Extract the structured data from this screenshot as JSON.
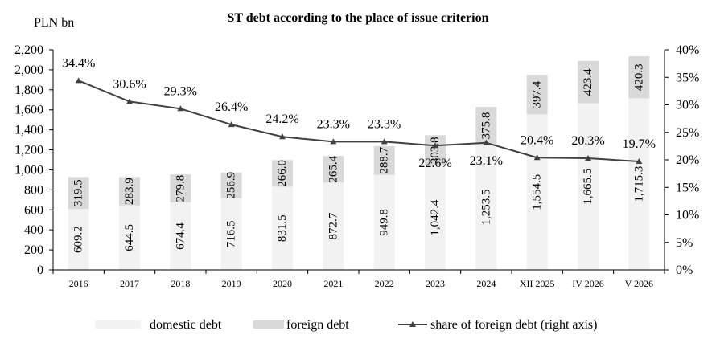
{
  "chart_data": {
    "type": "bar",
    "title": "ST debt according to the place of issue criterion",
    "unit_label": "PLN bn",
    "categories": [
      "2016",
      "2017",
      "2018",
      "2019",
      "2020",
      "2021",
      "2022",
      "2023",
      "2024",
      "XII 2025",
      "IV 2026",
      "V 2026"
    ],
    "series": [
      {
        "name": "domestic debt",
        "type": "bar",
        "stack": "debt",
        "axis": "left",
        "color": "#f2f2f2",
        "values": [
          609.2,
          644.5,
          674.4,
          716.5,
          831.5,
          872.7,
          949.8,
          1042.4,
          1253.5,
          1554.5,
          1665.5,
          1715.3
        ],
        "labels": [
          "609.2",
          "644.5",
          "674.4",
          "716.5",
          "831.5",
          "872.7",
          "949.8",
          "1,042.4",
          "1,253.5",
          "1,554.5",
          "1,665.5",
          "1,715.3"
        ]
      },
      {
        "name": "foreign debt",
        "type": "bar",
        "stack": "debt",
        "axis": "left",
        "color": "#d9d9d9",
        "values": [
          319.5,
          283.9,
          279.8,
          256.9,
          266.0,
          265.4,
          288.7,
          303.8,
          375.8,
          397.4,
          423.4,
          420.3
        ],
        "labels": [
          "319.5",
          "283.9",
          "279.8",
          "256.9",
          "266.0",
          "265.4",
          "288.7",
          "303.8",
          "375.8",
          "397.4",
          "423.4",
          "420.3"
        ]
      },
      {
        "name": "share of foreign debt (right axis)",
        "type": "line",
        "axis": "right",
        "color": "#404040",
        "values": [
          34.4,
          30.6,
          29.3,
          26.4,
          24.2,
          23.3,
          23.3,
          22.6,
          23.1,
          20.4,
          20.3,
          19.7
        ],
        "labels": [
          "34.4%",
          "30.6%",
          "29.3%",
          "26.4%",
          "24.2%",
          "23.3%",
          "23.3%",
          "22.6%",
          "23.1%",
          "20.4%",
          "20.3%",
          "19.7%"
        ]
      }
    ],
    "y_left": {
      "min": 0,
      "max": 2200,
      "ticks": [
        0,
        200,
        400,
        600,
        800,
        1000,
        1200,
        1400,
        1600,
        1800,
        2000,
        2200
      ],
      "tick_labels": [
        "0",
        "200",
        "400",
        "600",
        "800",
        "1,000",
        "1,200",
        "1,400",
        "1,600",
        "1,800",
        "2,000",
        "2,200"
      ]
    },
    "y_right": {
      "min": 0,
      "max": 40,
      "ticks": [
        0,
        5,
        10,
        15,
        20,
        25,
        30,
        35,
        40
      ],
      "tick_labels": [
        "0%",
        "5%",
        "10%",
        "15%",
        "20%",
        "25%",
        "30%",
        "35%",
        "40%"
      ]
    },
    "grid": false,
    "legend_position": "bottom"
  }
}
